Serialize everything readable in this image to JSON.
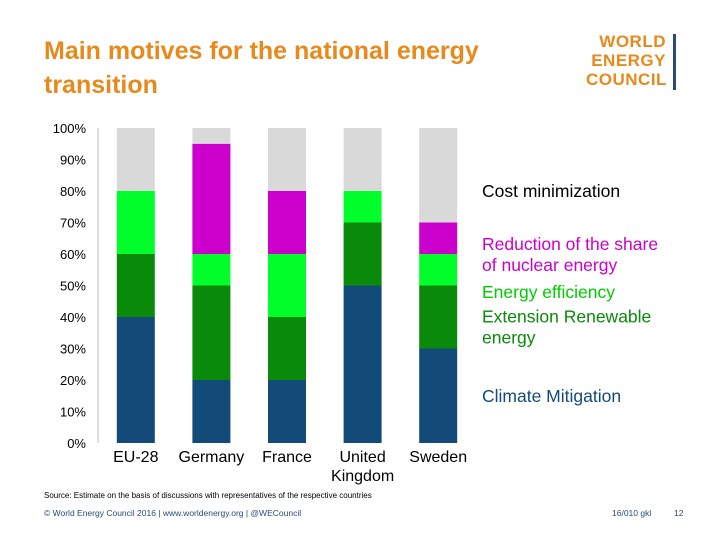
{
  "slide": {
    "title": "Main motives for the national energy transition",
    "logo_lines": [
      "WORLD",
      "ENERGY",
      "COUNCIL"
    ],
    "source": "Source: Estimate on the basis of discussions with representatives of the respective countries",
    "footer": "© World Energy Council 2016 | www.worldenergy.org | @WECouncil",
    "doc_code": "16/010 gkl",
    "page_number": "12"
  },
  "colors": {
    "title": "#e8891c",
    "footer": "#2b4a7a",
    "climate_mitigation": "#124a78",
    "extension_renewable": "#0a8a0a",
    "energy_efficiency": "#00ff2a",
    "nuclear_reduction": "#cc00cc",
    "cost_minimization": "#d9d9d9"
  },
  "chart_data": {
    "type": "bar",
    "stacked": true,
    "categories": [
      "EU-28",
      "Germany",
      "France",
      "United\nKingdom",
      "Sweden"
    ],
    "series": [
      {
        "name": "Climate Mitigation",
        "color": "#124a78",
        "values": [
          40,
          20,
          20,
          50,
          30
        ]
      },
      {
        "name": "Extension Renewable energy",
        "color": "#0a8a0a",
        "values": [
          20,
          30,
          20,
          20,
          20
        ]
      },
      {
        "name": "Energy efficiency",
        "color": "#00ff2a",
        "values": [
          20,
          10,
          20,
          10,
          10
        ]
      },
      {
        "name": "Reduction of the share of nuclear energy",
        "color": "#cc00cc",
        "values": [
          0,
          35,
          20,
          0,
          10
        ]
      },
      {
        "name": "Cost minimization",
        "color": "#d9d9d9",
        "values": [
          20,
          5,
          20,
          20,
          30
        ]
      }
    ],
    "yticks": [
      "0%",
      "10%",
      "20%",
      "30%",
      "40%",
      "50%",
      "60%",
      "70%",
      "80%",
      "90%",
      "100%"
    ],
    "ylim": [
      0,
      100
    ],
    "legend": [
      {
        "label": "Cost minimization",
        "color": "#000000",
        "y": 80
      },
      {
        "label": "Reduction of the share\nof nuclear energy",
        "color": "#cc00cc",
        "y": 60
      },
      {
        "label": "Energy efficiency",
        "color": "#00cc00",
        "y": 48
      },
      {
        "label": "Extension Renewable\nenergy",
        "color": "#0a8a0a",
        "y": 37
      },
      {
        "label": "Climate Mitigation",
        "color": "#124a78",
        "y": 15
      }
    ]
  }
}
